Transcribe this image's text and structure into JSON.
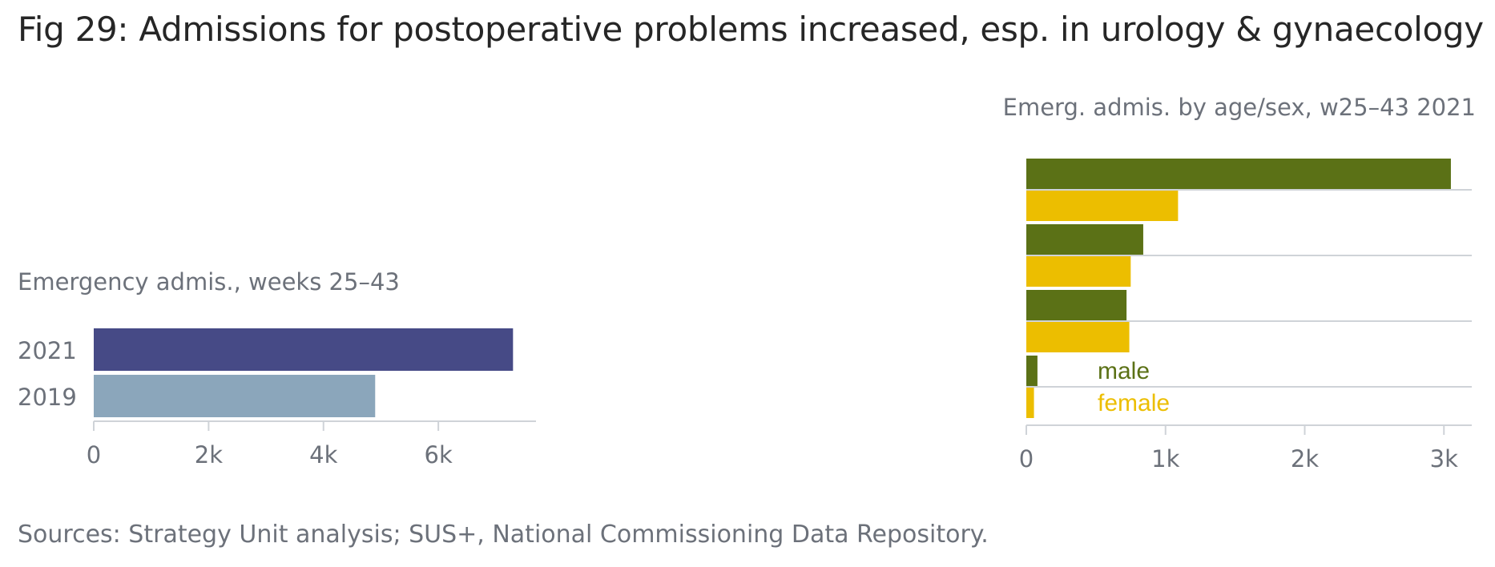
{
  "title": "Fig 29: Admissions for postoperative problems increased, esp. in urology & gynaecology",
  "source": "Sources: Strategy Unit analysis; SUS+, National Commissioning Data Repository.",
  "chart_data": [
    {
      "type": "bar",
      "orientation": "horizontal",
      "subtitle": "Emergency admis., weeks 25–43",
      "categories": [
        "2021",
        "2019"
      ],
      "values": [
        7300,
        4900
      ],
      "bar_colors": [
        "#464a86",
        "#8ba6bb"
      ],
      "xlim": [
        0,
        7700
      ],
      "xticks": [
        0,
        2000,
        4000,
        6000
      ],
      "xtick_labels": [
        "0",
        "2k",
        "4k",
        "6k"
      ],
      "grid": false
    },
    {
      "type": "bar",
      "orientation": "horizontal",
      "subtitle": "Emerg. admis. by age/sex, w25–43 2021",
      "groups": 4,
      "series": [
        {
          "name": "male",
          "color": "#5b7116",
          "values": [
            3050,
            840,
            720,
            80
          ]
        },
        {
          "name": "female",
          "color": "#ecbe00",
          "values": [
            1090,
            750,
            740,
            55
          ]
        }
      ],
      "xlim": [
        0,
        3200
      ],
      "xticks": [
        0,
        1000,
        2000,
        3000
      ],
      "xtick_labels": [
        "0",
        "1k",
        "2k",
        "3k"
      ],
      "legend": "inside, bottom-left"
    }
  ]
}
